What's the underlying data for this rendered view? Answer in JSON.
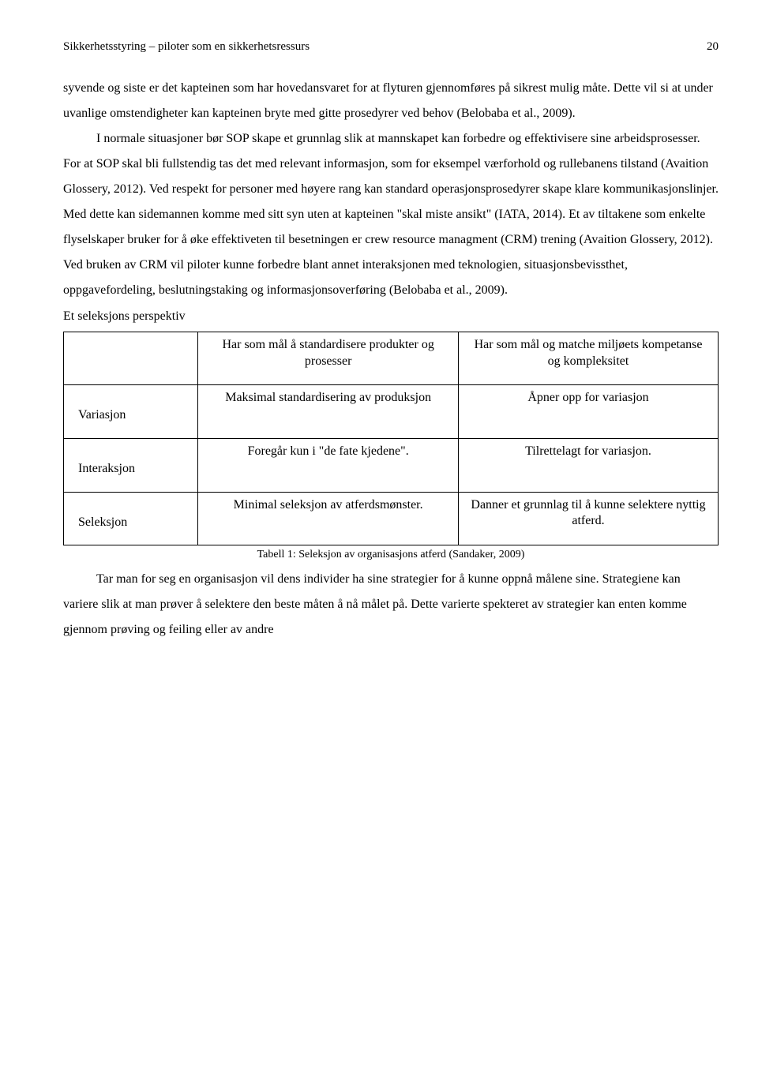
{
  "header": {
    "running_title": "Sikkerhetsstyring – piloter som en sikkerhetsressurs",
    "page_number": "20"
  },
  "body": {
    "p1": "syvende og siste er det kapteinen som har hovedansvaret for at flyturen gjennomføres på sikrest mulig måte. Dette vil si at under uvanlige omstendigheter kan kapteinen bryte med gitte prosedyrer ved behov (Belobaba et al., 2009).",
    "p2": "I normale situasjoner bør SOP skape et grunnlag slik at mannskapet kan forbedre og effektivisere sine arbeidsprosesser. For at SOP skal bli fullstendig tas det med relevant informasjon, som for eksempel værforhold og rullebanens tilstand (Avaition Glossery, 2012). Ved respekt for personer med høyere rang kan standard operasjonsprosedyrer skape klare kommunikasjonslinjer. Med dette kan sidemannen komme med sitt syn uten at kapteinen \"skal miste ansikt\" (IATA, 2014). Et av tiltakene som enkelte flyselskaper bruker for å øke effektiveten til besetningen er crew resource managment (CRM) trening (Avaition Glossery, 2012). Ved bruken av CRM vil piloter kunne forbedre blant annet interaksjonen med teknologien, situasjonsbevissthet, oppgavefordeling, beslutningstaking og informasjonsoverføring (Belobaba et al., 2009)."
  },
  "section_subtitle": "Et seleksjons perspektiv",
  "table": {
    "col_a_head": "Har som mål å standardisere produkter og prosesser",
    "col_b_head": "Har som mål og matche miljøets kompetanse og kompleksitet",
    "rows": [
      {
        "label": "Variasjon",
        "a": "Maksimal standardisering av produksjon",
        "b": "Åpner opp for variasjon"
      },
      {
        "label": "Interaksjon",
        "a": "Foregår kun i \"de fate kjedene\".",
        "b": "Tilrettelagt for variasjon."
      },
      {
        "label": "Seleksjon",
        "a": "Minimal seleksjon av atferdsmønster.",
        "b": "Danner et grunnlag til å kunne selektere nyttig atferd."
      }
    ],
    "caption": "Tabell 1: Seleksjon av organisasjons atferd (Sandaker, 2009)"
  },
  "tail": {
    "p3": "Tar man for seg en organisasjon vil dens individer ha sine strategier for å kunne oppnå målene sine. Strategiene kan variere slik at man prøver å selektere den beste måten å nå målet på. Dette varierte spekteret av strategier kan enten komme gjennom prøving og feiling eller av andre"
  }
}
